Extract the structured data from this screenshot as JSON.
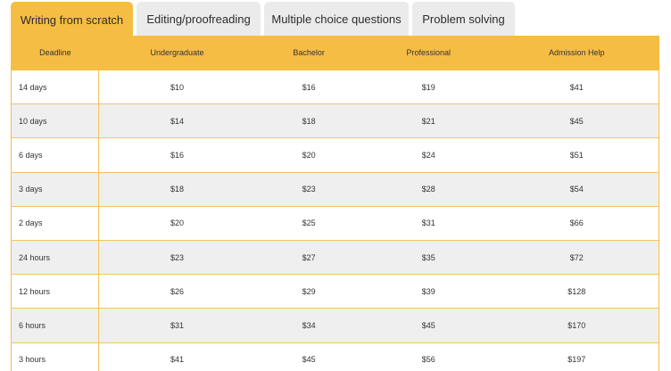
{
  "tabs": [
    {
      "label": "Writing from scratch",
      "active": true
    },
    {
      "label": "Editing/proofreading",
      "active": false
    },
    {
      "label": "Multiple choice questions",
      "active": false
    },
    {
      "label": "Problem solving",
      "active": false
    }
  ],
  "table": {
    "headers": [
      "Deadline",
      "Undergraduate",
      "Bachelor",
      "Professional",
      "Admission Help"
    ],
    "rows": [
      [
        "14 days",
        "$10",
        "$16",
        "$19",
        "$41"
      ],
      [
        "10 days",
        "$14",
        "$18",
        "$21",
        "$45"
      ],
      [
        "6 days",
        "$16",
        "$20",
        "$24",
        "$51"
      ],
      [
        "3 days",
        "$18",
        "$23",
        "$28",
        "$54"
      ],
      [
        "2 days",
        "$20",
        "$25",
        "$31",
        "$66"
      ],
      [
        "24 hours",
        "$23",
        "$27",
        "$35",
        "$72"
      ],
      [
        "12 hours",
        "$26",
        "$29",
        "$39",
        "$128"
      ],
      [
        "6 hours",
        "$31",
        "$34",
        "$45",
        "$170"
      ],
      [
        "3 hours",
        "$41",
        "$45",
        "$56",
        "$197"
      ]
    ]
  },
  "colors": {
    "accent": "#f6bd45",
    "tab_inactive": "#ebebeb",
    "row_alt": "#efefef"
  }
}
